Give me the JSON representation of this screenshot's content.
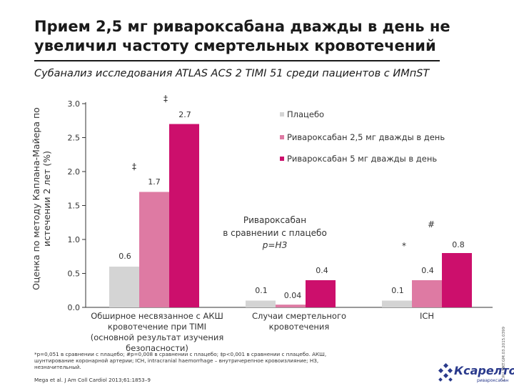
{
  "header": {
    "title_line1": "Прием 2,5 мг ривароксабана дважды в день не",
    "title_line2": "увеличил частоту смертельных кровотечений",
    "subtitle": "Субанализ исследования ATLAS ACS 2 TIMI 51 среди пациентов с ИМпST"
  },
  "colors": {
    "placebo": "#d4d4d4",
    "riva25": "#de7aa3",
    "riva5": "#cc0f6c",
    "axis": "#333333"
  },
  "chart_data": {
    "type": "bar",
    "ylabel": "Оценка по методу Каплана-Майера по истечении 2 лет (%)",
    "ylim": [
      0,
      3.0
    ],
    "yticks": [
      "0.0",
      "0.5",
      "1.0",
      "1.5",
      "2.0",
      "2.5",
      "3.0"
    ],
    "grid": false,
    "legend_position": "top-right",
    "categories": [
      [
        "Обширное несвязанное с АКШ",
        "кровотечение при TIMI",
        "(основной результат изучения",
        "безопасности)"
      ],
      [
        "Случаи смертельного",
        "кровотечения"
      ],
      [
        "ICH"
      ]
    ],
    "series": [
      {
        "name": "Плацебо",
        "values": [
          0.6,
          0.1,
          0.1
        ],
        "labels": [
          "0.6",
          "0.1",
          "0.1"
        ]
      },
      {
        "name": "Ривароксабан 2,5 мг дважды в день",
        "values": [
          1.7,
          0.04,
          0.4
        ],
        "labels": [
          "1.7",
          "0.04",
          "0.4"
        ]
      },
      {
        "name": "Ривароксабан 5 мг дважды в день",
        "values": [
          2.7,
          0.4,
          0.8
        ],
        "labels": [
          "2.7",
          "0.4",
          "0.8"
        ]
      }
    ],
    "annotations": {
      "group1_riva25_mark": "‡",
      "group1_riva5_mark": "‡",
      "group3_riva25_mark": "*",
      "group3_riva5_mark": "#",
      "comparison_line1": "Ривароксабан",
      "comparison_line2": "в сравнении с плацебо",
      "comparison_line3": "p=НЗ"
    }
  },
  "footnote": {
    "line1": "*p=0,051 в сравнении с плацебо; #p=0,008 в сравнении с плацебо; ‡p<0,001 в сравнении с плацебо. АКШ,",
    "line2": "шунтирование коронарной артерии; ICH, intracranial haemorrhage – внутричерепное кровоизлияние; НЗ,",
    "line3": "незначительный."
  },
  "source": "Mega et al. J Am Coll Cardiol 2013;61:1853–9",
  "side_code": "L.RU.MKT.GM.03.2015.0399",
  "logo": {
    "text": "Ксарелто",
    "sub": "ривароксабан"
  }
}
